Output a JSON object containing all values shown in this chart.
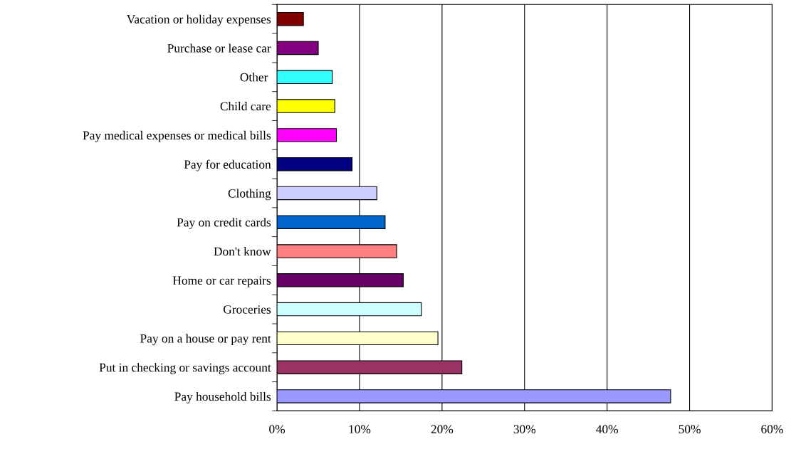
{
  "chart_data": {
    "type": "bar",
    "orientation": "horizontal",
    "categories": [
      "Vacation or holiday expenses",
      "Purchase or lease car",
      "Other ",
      "Child care",
      "Pay medical expenses or medical bills",
      "Pay for education",
      "Clothing",
      "Pay on credit cards",
      "Don't know",
      "Home or car repairs",
      "Groceries",
      "Pay on a house or pay rent",
      "Put in checking or savings account",
      "Pay household bills"
    ],
    "values": [
      3.2,
      5.0,
      6.7,
      7.0,
      7.2,
      9.1,
      12.1,
      13.1,
      14.5,
      15.3,
      17.5,
      19.5,
      22.4,
      47.7
    ],
    "colors": [
      "#800000",
      "#800080",
      "#33ffff",
      "#ffff00",
      "#ff00ff",
      "#000080",
      "#ccccff",
      "#0066cc",
      "#ff8080",
      "#660066",
      "#ccffff",
      "#ffffcc",
      "#993366",
      "#9999ff"
    ],
    "xlim": [
      0,
      60
    ],
    "xticks": [
      {
        "value": 0,
        "label": "0%"
      },
      {
        "value": 10,
        "label": "10%"
      },
      {
        "value": 20,
        "label": "20%"
      },
      {
        "value": 30,
        "label": "30%"
      },
      {
        "value": 40,
        "label": "40%"
      },
      {
        "value": 50,
        "label": "50%"
      },
      {
        "value": 60,
        "label": "60%"
      }
    ],
    "grid": "x",
    "legend": false
  }
}
